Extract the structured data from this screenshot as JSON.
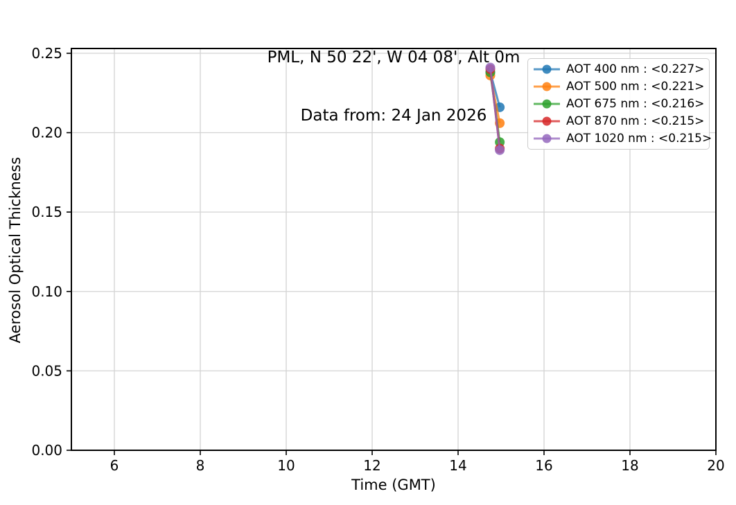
{
  "chart_data": {
    "type": "line",
    "title": "PML, N 50 22', W 04 08', Alt 0m",
    "subtitle": "Data from: 24 Jan 2026",
    "xlabel": "Time (GMT)",
    "ylabel": "Aerosol Optical Thickness",
    "xlim": [
      5,
      20
    ],
    "ylim": [
      0,
      0.253
    ],
    "xtick_values": [
      6,
      8,
      10,
      12,
      14,
      16,
      18,
      20
    ],
    "xtick_labels": [
      "6",
      "8",
      "10",
      "12",
      "14",
      "16",
      "18",
      "20"
    ],
    "ytick_values": [
      0.0,
      0.05,
      0.1,
      0.15,
      0.2,
      0.25
    ],
    "ytick_labels": [
      "0.00",
      "0.05",
      "0.10",
      "0.15",
      "0.20",
      "0.25"
    ],
    "grid": true,
    "grid_color": "#d3d3d3",
    "spine_color": "#000000",
    "legend_position": "upper right",
    "x": [
      14.75,
      14.97
    ],
    "series": [
      {
        "name": "AOT 400 nm : <0.227>",
        "color": "#1f77b4",
        "values": [
          0.238,
          0.216
        ]
      },
      {
        "name": "AOT 500 nm : <0.221>",
        "color": "#ff7f0e",
        "values": [
          0.236,
          0.206
        ]
      },
      {
        "name": "AOT 675 nm : <0.216>",
        "color": "#2ca02c",
        "values": [
          0.238,
          0.194
        ]
      },
      {
        "name": "AOT 870 nm : <0.215>",
        "color": "#d62728",
        "values": [
          0.24,
          0.19
        ]
      },
      {
        "name": "AOT 1020 nm : <0.215>",
        "color": "#9467bd",
        "values": [
          0.241,
          0.189
        ]
      }
    ]
  }
}
